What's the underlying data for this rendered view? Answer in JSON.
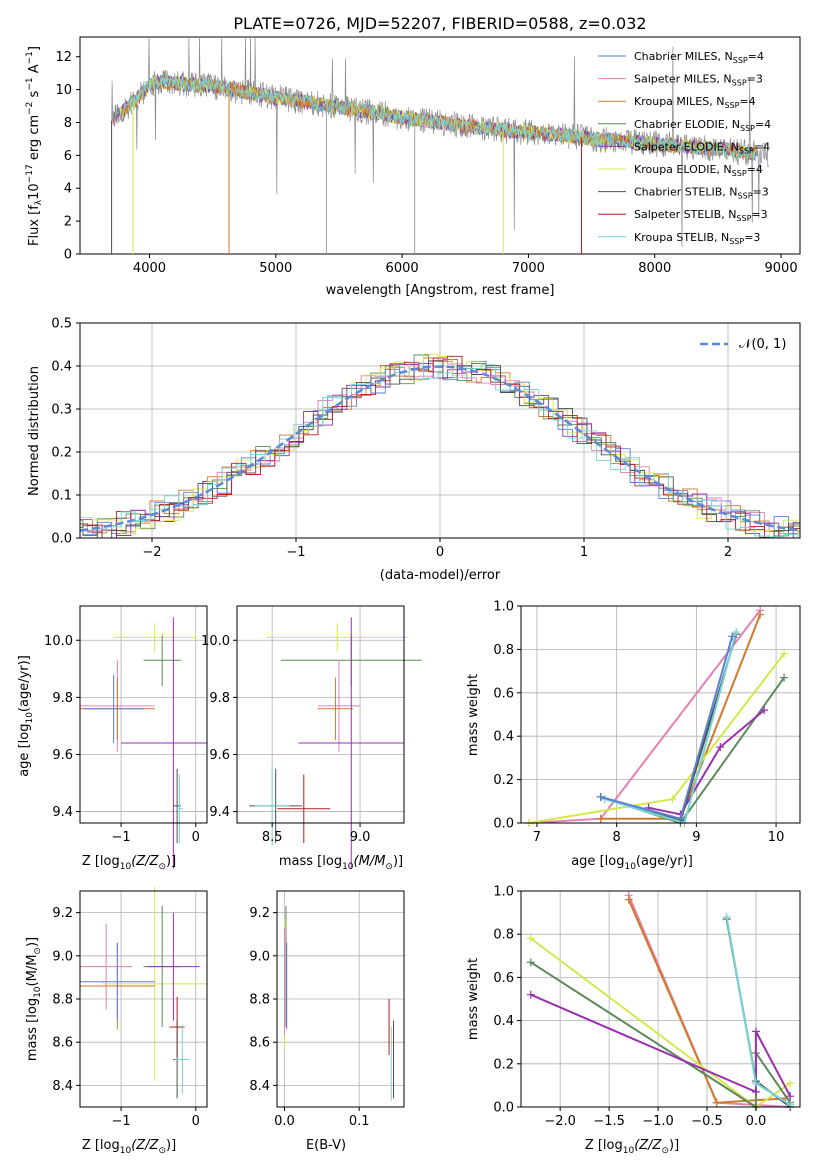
{
  "title": "PLATE=0726, MJD=52207, FIBERID=0588, z=0.032",
  "models": [
    {
      "name": "Chabrier MILES, N",
      "nssp": "=4",
      "color": "#5b7fd1"
    },
    {
      "name": "Salpeter MILES, N",
      "nssp": "=3",
      "color": "#e57fb4"
    },
    {
      "name": "Kroupa MILES, N",
      "nssp": "=4",
      "color": "#d07a2c"
    },
    {
      "name": "Chabrier ELODIE, N",
      "nssp": "=4",
      "color": "#5b8a5b"
    },
    {
      "name": "Salpeter ELODIE, N",
      "nssp": "=4",
      "color": "#9a2fae"
    },
    {
      "name": "Kroupa ELODIE, N",
      "nssp": "=4",
      "color": "#d4e84c"
    },
    {
      "name": "Chabrier STELIB, N",
      "nssp": "=3",
      "color": "#505050"
    },
    {
      "name": "Salpeter STELIB, N",
      "nssp": "=3",
      "color": "#b51d1d"
    },
    {
      "name": "Kroupa STELIB, N",
      "nssp": "=3",
      "color": "#76d3d6"
    }
  ],
  "legend_sub": "SSP",
  "spectrum": {
    "xlabel": "wavelength [Angstrom, rest frame]",
    "ylabel": "Flux [f",
    "ylabel_sub": "λ",
    "ylabel_rest": "10",
    "ylabel_sup": "−17",
    "ylabel_units": " erg cm",
    "ylabel_sup2": "−2",
    "ylabel_mid": " s",
    "ylabel_sup3": "−1",
    "ylabel_mid2": " A",
    "ylabel_sup4": "−1",
    "ylabel_end": "]",
    "xticks": [
      "4000",
      "5000",
      "6000",
      "7000",
      "8000",
      "9000"
    ],
    "yticks": [
      "0",
      "2",
      "4",
      "6",
      "8",
      "10",
      "12"
    ]
  },
  "residuals": {
    "xlabel": "(data-model)/error",
    "ylabel": "Normed distribution",
    "legend": "𝒩(0, 1)",
    "xticks": [
      "−2",
      "−1",
      "0",
      "1",
      "2"
    ],
    "yticks": [
      "0.0",
      "0.1",
      "0.2",
      "0.3",
      "0.4",
      "0.5"
    ]
  },
  "labels": {
    "z_axis": "Z [log",
    "z_sub": "10",
    "z_rest": "(Z/Z",
    "z_sun": "⊙",
    "z_end": ")]",
    "age_axis": "age  [log",
    "age_sub": "10",
    "age_rest": "(age/yr)]",
    "mass_axis": "mass [log",
    "mass_sub": "10",
    "mass_rest": "(M/M",
    "mass_sun": "⊙",
    "mass_end": ")]",
    "ebv": "E(B-V)",
    "mass_weight": "mass weight"
  },
  "ticks": {
    "age": [
      "9.4",
      "9.6",
      "9.8",
      "10.0"
    ],
    "mass": [
      "8.4",
      "8.6",
      "8.8",
      "9.0",
      "9.2"
    ],
    "z_small": [
      "−1",
      "0"
    ],
    "mass_x": [
      "8.5",
      "9.0"
    ],
    "ebv_x": [
      "0.0",
      "0.1"
    ],
    "age_x": [
      "7",
      "8",
      "9",
      "10"
    ],
    "weight": [
      "0.0",
      "0.2",
      "0.4",
      "0.6",
      "0.8",
      "1.0"
    ],
    "z_big": [
      "−2.0",
      "−1.5",
      "−1.0",
      "−0.5",
      "0.0"
    ]
  },
  "chart_data": [
    {
      "type": "line",
      "title": "PLATE=0726, MJD=52207, FIBERID=0588, z=0.032",
      "xlabel": "wavelength [Angstrom, rest frame]",
      "ylabel": "Flux [fλ10^-17 erg cm^-2 s^-1 A^-1]",
      "xlim": [
        3450,
        9150
      ],
      "ylim": [
        0,
        13.2
      ],
      "legend_position": "top-right",
      "grid": false,
      "continuum": {
        "x": [
          3700,
          3800,
          3900,
          4000,
          4100,
          4300,
          4500,
          4800,
          5000,
          5200,
          5500,
          5800,
          6000,
          6300,
          6500,
          6700,
          7000,
          7300,
          7500,
          7700,
          8000,
          8300,
          8600,
          8900
        ],
        "y": [
          8.1,
          8.8,
          9.4,
          10.3,
          10.5,
          10.3,
          10.2,
          9.8,
          9.5,
          9.3,
          8.9,
          8.6,
          8.3,
          8.0,
          7.8,
          7.6,
          7.4,
          7.2,
          7.0,
          6.9,
          6.7,
          6.5,
          6.3,
          6.0
        ]
      }
    },
    {
      "type": "bar",
      "xlabel": "(data-model)/error",
      "ylabel": "Normed distribution",
      "xlim": [
        -2.5,
        2.5
      ],
      "ylim": [
        0,
        0.5
      ],
      "grid": true,
      "legend_position": "top-right",
      "reference": "standard normal N(0,1)"
    },
    {
      "type": "scatter",
      "name": "age vs Z",
      "xlabel": "Z [log10(Z/Zsun)]",
      "ylabel": "age [log10(age/yr)]",
      "xlim": [
        -1.55,
        0.15
      ],
      "ylim": [
        9.36,
        10.12
      ],
      "points": [
        {
          "model": "Kroupa ELODIE",
          "x": -0.55,
          "y": 10.01
        },
        {
          "model": "Chabrier ELODIE",
          "x": -0.45,
          "y": 9.93
        },
        {
          "model": "Salpeter MILES",
          "x": -1.05,
          "y": 9.77
        },
        {
          "model": "Kroupa MILES",
          "x": -1.05,
          "y": 9.76
        },
        {
          "model": "Salpeter ELODIE",
          "x": -0.3,
          "y": 9.64
        },
        {
          "model": "Chabrier STELIB",
          "x": -0.25,
          "y": 9.42
        }
      ]
    },
    {
      "type": "scatter",
      "name": "age vs mass",
      "xlabel": "mass [log10(M/Msun)]",
      "ylabel": "age [log10(age/yr)]",
      "xlim": [
        8.3,
        9.25
      ],
      "ylim": [
        9.36,
        10.12
      ],
      "points": [
        {
          "model": "Kroupa ELODIE",
          "x": 8.87,
          "y": 10.01
        },
        {
          "model": "Chabrier ELODIE",
          "x": 8.95,
          "y": 9.93
        },
        {
          "model": "Salpeter MILES",
          "x": 8.88,
          "y": 9.77
        },
        {
          "model": "Kroupa MILES",
          "x": 8.86,
          "y": 9.76
        },
        {
          "model": "Salpeter ELODIE",
          "x": 8.95,
          "y": 9.64
        },
        {
          "model": "Chabrier STELIB",
          "x": 8.52,
          "y": 9.42
        }
      ]
    },
    {
      "type": "line",
      "name": "mass weight vs age",
      "xlabel": "age [log10(age/yr)]",
      "ylabel": "mass weight",
      "xlim": [
        6.8,
        10.3
      ],
      "ylim": [
        0,
        1
      ],
      "grid": true
    },
    {
      "type": "scatter",
      "name": "mass vs Z",
      "xlabel": "Z [log10(Z/Zsun)]",
      "ylabel": "mass [log10(M/Msun)]",
      "xlim": [
        -1.55,
        0.15
      ],
      "ylim": [
        8.3,
        9.3
      ]
    },
    {
      "type": "scatter",
      "name": "mass vs E(B-V)",
      "xlabel": "E(B-V)",
      "ylabel": "mass [log10(M/Msun)]",
      "xlim": [
        -0.01,
        0.16
      ],
      "ylim": [
        8.3,
        9.3
      ]
    },
    {
      "type": "line",
      "name": "mass weight vs Z",
      "xlabel": "Z [log10(Z/Zsun)]",
      "ylabel": "mass weight",
      "xlim": [
        -2.4,
        0.45
      ],
      "ylim": [
        0,
        1
      ],
      "grid": true
    }
  ]
}
